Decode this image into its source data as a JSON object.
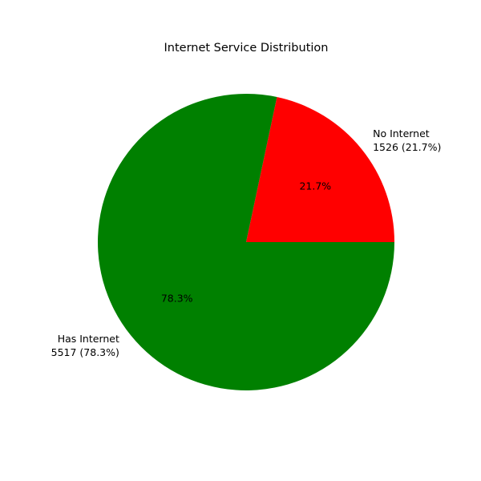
{
  "chart_data": {
    "type": "pie",
    "title": "Internet Service Distribution",
    "slices": [
      {
        "name": "No Internet",
        "value": 1526,
        "percent": 21.7,
        "color": "#ff0000",
        "label_line1": "No Internet",
        "label_line2": "1526 (21.7%)",
        "pct_text": "21.7%"
      },
      {
        "name": "Has Internet",
        "value": 5517,
        "percent": 78.3,
        "color": "#008000",
        "label_line1": "Has Internet",
        "label_line2": "5517 (78.3%)",
        "pct_text": "78.3%"
      }
    ],
    "start_angle_deg": 0,
    "direction": "counterclockwise"
  }
}
